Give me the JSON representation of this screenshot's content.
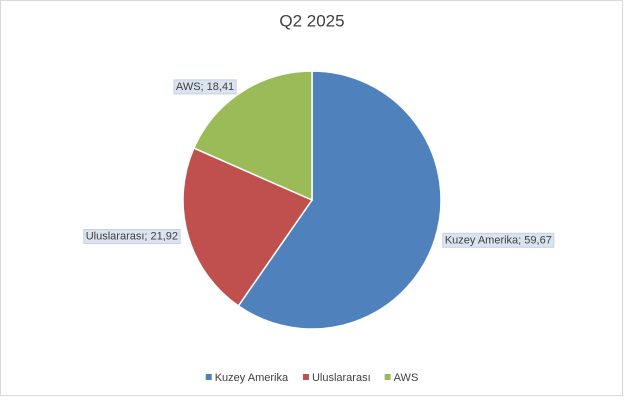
{
  "chart_data": {
    "type": "pie",
    "title": "Q2 2025",
    "categories": [
      "Kuzey Amerika",
      "Uluslararası",
      "AWS"
    ],
    "values": [
      59.67,
      21.92,
      18.41
    ],
    "value_labels": [
      "Kuzey Amerika; 59,67",
      "Uluslararası; 21,92",
      "AWS; 18,41"
    ],
    "colors": [
      "#4f81bd",
      "#c0504d",
      "#9bbb59"
    ],
    "legend": "bottom"
  }
}
